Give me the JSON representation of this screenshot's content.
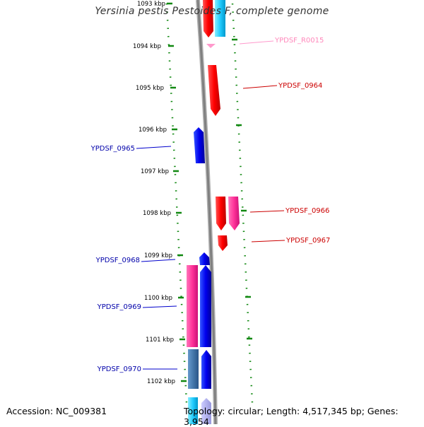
{
  "title": "Yersinia pestis Pestoides F, complete genome",
  "footer": {
    "accession": "Accession: NC_009381",
    "summary": "Topology: circular; Length: 4,517,345 bp; Genes: 3,954"
  },
  "ticks": [
    "1093 kbp",
    "1094 kbp",
    "1095 kbp",
    "1096 kbp",
    "1097 kbp",
    "1098 kbp",
    "1099 kbp",
    "1100 kbp",
    "1101 kbp",
    "1102 kbp"
  ],
  "labels": [
    "YPDSF_R0015",
    "YPDSF_0964",
    "YPDSF_0965",
    "YPDSF_0966",
    "YPDSF_0967",
    "YPDSF_0968",
    "YPDSF_0969",
    "YPDSF_0970"
  ],
  "colors": {
    "forward_cds": "#ff0000",
    "reverse_cds": "#0000ee",
    "rna": "#ff99cc",
    "pink_feature": "#ff3399",
    "cyan_feature": "#22ccff",
    "steel_feature": "#4477aa",
    "backbone": "#999999",
    "tick_marks": "#118811"
  }
}
